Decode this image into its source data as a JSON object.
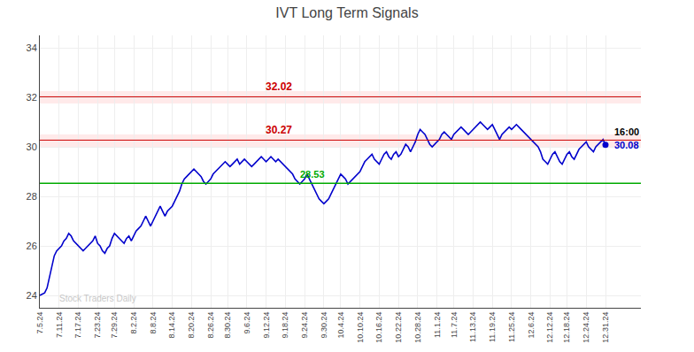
{
  "chart_data": {
    "type": "line",
    "title": "IVT Long Term Signals",
    "categories": [
      "7.5.24",
      null,
      null,
      null,
      null,
      null,
      null,
      null,
      "7.11.24",
      null,
      null,
      null,
      null,
      null,
      null,
      null,
      "7.17.24",
      null,
      null,
      null,
      null,
      null,
      null,
      null,
      "7.23.24",
      null,
      null,
      null,
      null,
      null,
      null,
      "7.29.24",
      null,
      null,
      null,
      null,
      null,
      null,
      null,
      "8.2.24",
      null,
      null,
      null,
      null,
      null,
      null,
      null,
      "8.8.24",
      null,
      null,
      null,
      null,
      null,
      null,
      null,
      "8.14.24",
      null,
      null,
      null,
      null,
      null,
      null,
      null,
      "8.20.24",
      null,
      null,
      null,
      null,
      null,
      null,
      null,
      "8.26.24",
      null,
      null,
      null,
      null,
      null,
      null,
      "8.30.24",
      null,
      null,
      null,
      null,
      null,
      null,
      null,
      "9.6.24",
      null,
      null,
      null,
      null,
      null,
      null,
      null,
      "9.12.24",
      null,
      null,
      null,
      null,
      null,
      null,
      null,
      "9.18.24",
      null,
      null,
      null,
      null,
      null,
      null,
      null,
      "9.24.24",
      null,
      null,
      null,
      null,
      null,
      null,
      null,
      "9.30.24",
      null,
      null,
      null,
      null,
      null,
      null,
      "10.4.24",
      null,
      null,
      null,
      null,
      null,
      null,
      null,
      "10.10.24",
      null,
      null,
      null,
      null,
      null,
      null,
      null,
      "10.16.24",
      null,
      null,
      null,
      null,
      null,
      null,
      null,
      "10.22.24",
      null,
      null,
      null,
      null,
      null,
      null,
      null,
      "10.28.24",
      null,
      null,
      null,
      null,
      null,
      null,
      null,
      "11.1.24",
      null,
      null,
      null,
      null,
      null,
      null,
      "11.7.24",
      null,
      null,
      null,
      null,
      null,
      null,
      null,
      "11.13.24",
      null,
      null,
      null,
      null,
      null,
      null,
      null,
      "11.19.24",
      null,
      null,
      null,
      null,
      null,
      null,
      null,
      "11.25.24",
      null,
      null,
      null,
      null,
      null,
      null,
      null,
      "12.6.24",
      null,
      null,
      null,
      null,
      null,
      null,
      null,
      "12.12.24",
      null,
      null,
      null,
      null,
      null,
      null,
      "12.18.24",
      null,
      null,
      null,
      null,
      null,
      null,
      null,
      "12.24.24",
      null,
      null,
      null,
      null,
      null,
      null,
      null,
      "12.31.24"
    ],
    "values": [
      24.0,
      24.05,
      24.1,
      24.3,
      24.7,
      25.2,
      25.6,
      25.8,
      25.9,
      26.0,
      26.2,
      26.3,
      26.5,
      26.4,
      26.2,
      26.1,
      26.0,
      25.9,
      25.8,
      25.9,
      26.0,
      26.1,
      26.2,
      26.4,
      26.1,
      26.0,
      25.8,
      25.7,
      25.9,
      26.0,
      26.3,
      26.5,
      26.4,
      26.3,
      26.2,
      26.1,
      26.3,
      26.4,
      26.2,
      26.4,
      26.6,
      26.7,
      26.8,
      27.0,
      27.2,
      27.0,
      26.8,
      27.0,
      27.2,
      27.4,
      27.6,
      27.4,
      27.2,
      27.4,
      27.5,
      27.6,
      27.8,
      28.0,
      28.2,
      28.5,
      28.7,
      28.8,
      28.9,
      29.0,
      29.1,
      29.0,
      28.9,
      28.8,
      28.6,
      28.5,
      28.6,
      28.7,
      28.9,
      29.0,
      29.1,
      29.2,
      29.3,
      29.4,
      29.3,
      29.2,
      29.3,
      29.4,
      29.5,
      29.3,
      29.4,
      29.5,
      29.4,
      29.3,
      29.2,
      29.3,
      29.4,
      29.5,
      29.6,
      29.5,
      29.4,
      29.5,
      29.6,
      29.5,
      29.4,
      29.5,
      29.4,
      29.3,
      29.2,
      29.1,
      29.0,
      28.9,
      28.7,
      28.6,
      28.5,
      28.6,
      28.7,
      28.9,
      28.7,
      28.5,
      28.3,
      28.1,
      27.9,
      27.8,
      27.7,
      27.8,
      27.9,
      28.1,
      28.3,
      28.5,
      28.7,
      28.9,
      28.8,
      28.7,
      28.5,
      28.6,
      28.7,
      28.8,
      28.9,
      29.0,
      29.2,
      29.4,
      29.5,
      29.6,
      29.7,
      29.5,
      29.4,
      29.3,
      29.5,
      29.7,
      29.8,
      29.6,
      29.5,
      29.7,
      29.8,
      29.6,
      29.7,
      29.9,
      30.1,
      30.0,
      29.8,
      30.0,
      30.2,
      30.5,
      30.7,
      30.6,
      30.5,
      30.3,
      30.1,
      30.0,
      30.1,
      30.2,
      30.3,
      30.5,
      30.6,
      30.5,
      30.4,
      30.3,
      30.5,
      30.6,
      30.7,
      30.8,
      30.7,
      30.6,
      30.5,
      30.6,
      30.7,
      30.8,
      30.9,
      31.0,
      30.9,
      30.8,
      30.7,
      30.8,
      30.9,
      30.7,
      30.5,
      30.3,
      30.5,
      30.6,
      30.7,
      30.8,
      30.7,
      30.8,
      30.9,
      30.8,
      30.7,
      30.6,
      30.5,
      30.4,
      30.3,
      30.2,
      30.1,
      30.0,
      29.8,
      29.5,
      29.4,
      29.3,
      29.5,
      29.7,
      29.8,
      29.6,
      29.4,
      29.3,
      29.5,
      29.7,
      29.8,
      29.6,
      29.5,
      29.7,
      29.9,
      30.0,
      30.1,
      30.2,
      30.0,
      29.9,
      29.8,
      30.0,
      30.1,
      30.2,
      30.3,
      30.08
    ],
    "color": "#0000cc",
    "ylim": [
      23.5,
      34.5
    ],
    "yticks": [
      24,
      26,
      28,
      30,
      32,
      34
    ],
    "grid": true,
    "reference_lines": [
      {
        "y": 32.02,
        "label": "32.02",
        "color": "#cc0000",
        "band": [
          31.75,
          32.25
        ],
        "band_color": "#ffaaaa"
      },
      {
        "y": 30.27,
        "label": "30.27",
        "color": "#cc0000",
        "band": [
          30.0,
          30.5
        ],
        "band_color": "#ffaaaa"
      },
      {
        "y": 28.53,
        "label": "28.53",
        "color": "#00aa00"
      }
    ],
    "end_labels": [
      "16:00",
      "30.08"
    ],
    "watermark": {
      "text": "Stock Traders Daily",
      "color": "#bbbbbb"
    }
  }
}
